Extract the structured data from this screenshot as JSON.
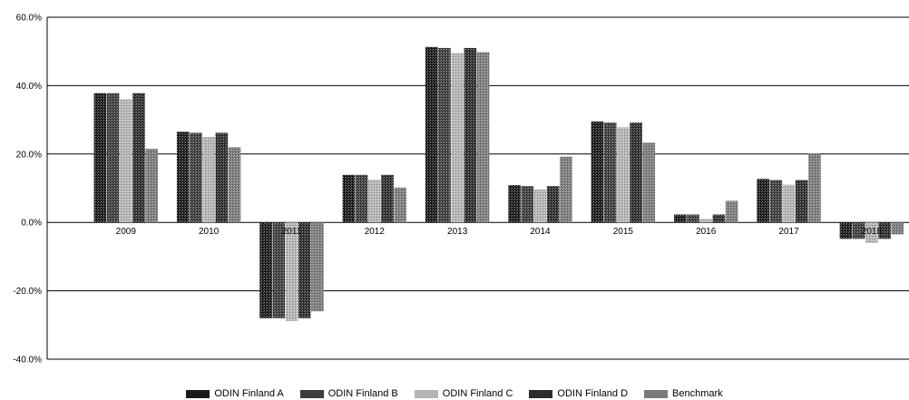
{
  "chart_data": {
    "type": "bar",
    "title": "",
    "xlabel": "",
    "ylabel": "",
    "ylim": [
      -40,
      60
    ],
    "y_ticks": [
      "-40.0%",
      "-20.0%",
      "0.0%",
      "20.0%",
      "40.0%",
      "60.0%"
    ],
    "y_tick_values": [
      -40,
      -20,
      0,
      20,
      40,
      60
    ],
    "grid": true,
    "legend_position": "bottom",
    "categories": [
      "2009",
      "2010",
      "2011",
      "2012",
      "2013",
      "2014",
      "2015",
      "2016",
      "2017",
      "2018"
    ],
    "series": [
      {
        "name": "ODIN Finland A",
        "color": "#1a1a1a",
        "values": [
          37.8,
          26.5,
          -28.0,
          13.9,
          51.3,
          10.9,
          29.5,
          2.3,
          12.7,
          -4.8
        ]
      },
      {
        "name": "ODIN Finland B",
        "color": "#3d3d3d",
        "values": [
          37.8,
          26.2,
          -28.0,
          13.9,
          51.0,
          10.6,
          29.2,
          2.3,
          12.4,
          -4.8
        ]
      },
      {
        "name": "ODIN Finland C",
        "color": "#b4b4b4",
        "values": [
          36.0,
          25.0,
          -28.8,
          12.5,
          49.5,
          9.6,
          27.8,
          1.0,
          11.0,
          -6.0
        ]
      },
      {
        "name": "ODIN Finland D",
        "color": "#2d2d2d",
        "values": [
          37.8,
          26.2,
          -28.0,
          13.9,
          51.0,
          10.6,
          29.2,
          2.3,
          12.4,
          -4.8
        ]
      },
      {
        "name": "Benchmark",
        "color": "#7a7a7a",
        "values": [
          21.5,
          22.0,
          -26.0,
          10.2,
          49.8,
          19.2,
          23.3,
          6.3,
          20.2,
          -3.5
        ]
      }
    ]
  }
}
